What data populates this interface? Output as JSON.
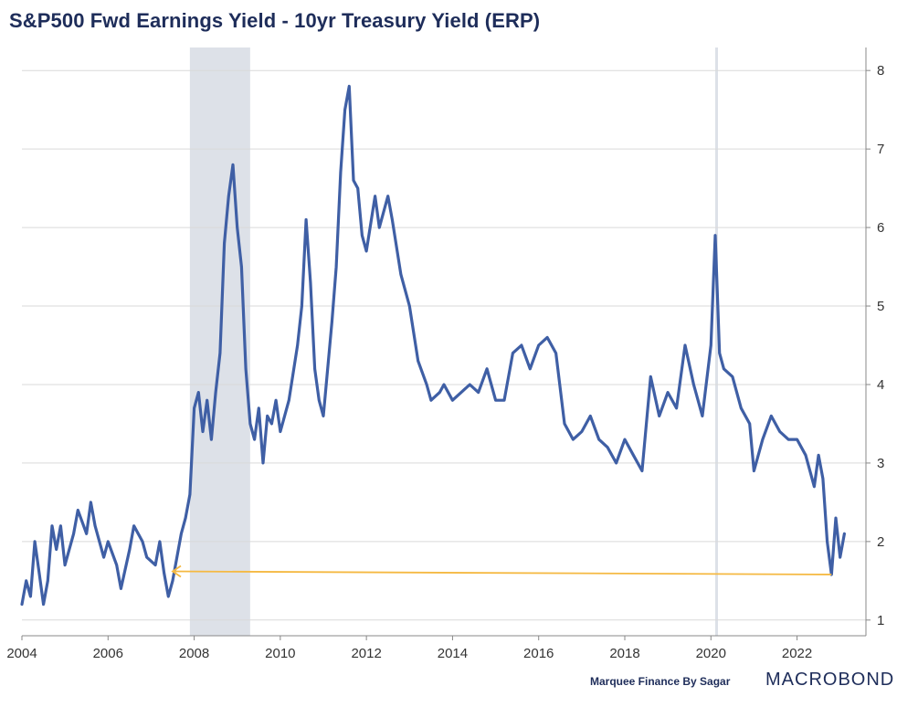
{
  "chart_data": {
    "type": "line",
    "title": "S&P500 Fwd Earnings Yield - 10yr Treasury Yield (ERP)",
    "xlabel": "",
    "ylabel": "",
    "xlim": [
      2004.0,
      2023.6
    ],
    "ylim": [
      0.8,
      8.2
    ],
    "y_axis_side": "right",
    "grid": true,
    "x_ticks": [
      2004,
      2006,
      2008,
      2010,
      2012,
      2014,
      2016,
      2018,
      2020,
      2022
    ],
    "y_ticks": [
      1,
      2,
      3,
      4,
      5,
      6,
      7,
      8
    ],
    "shaded_periods": [
      {
        "name": "recession-2008",
        "start": 2007.9,
        "end": 2009.3
      },
      {
        "name": "recession-2020",
        "start": 2020.1,
        "end": 2020.15
      }
    ],
    "annotation_arrow": {
      "from": [
        2022.8,
        1.58
      ],
      "to": [
        2007.5,
        1.62
      ],
      "color": "#f5b942"
    },
    "series": [
      {
        "name": "ERP",
        "color": "#3f5fa5",
        "x": [
          2004.0,
          2004.1,
          2004.2,
          2004.3,
          2004.4,
          2004.5,
          2004.6,
          2004.7,
          2004.8,
          2004.9,
          2005.0,
          2005.2,
          2005.3,
          2005.5,
          2005.6,
          2005.7,
          2005.9,
          2006.0,
          2006.2,
          2006.3,
          2006.5,
          2006.6,
          2006.8,
          2006.9,
          2007.1,
          2007.2,
          2007.3,
          2007.4,
          2007.5,
          2007.6,
          2007.7,
          2007.8,
          2007.9,
          2008.0,
          2008.1,
          2008.2,
          2008.3,
          2008.4,
          2008.5,
          2008.6,
          2008.7,
          2008.8,
          2008.9,
          2009.0,
          2009.1,
          2009.2,
          2009.3,
          2009.4,
          2009.5,
          2009.6,
          2009.7,
          2009.8,
          2009.9,
          2010.0,
          2010.2,
          2010.4,
          2010.5,
          2010.6,
          2010.7,
          2010.8,
          2010.9,
          2011.0,
          2011.2,
          2011.3,
          2011.4,
          2011.5,
          2011.6,
          2011.7,
          2011.8,
          2011.9,
          2012.0,
          2012.2,
          2012.3,
          2012.5,
          2012.6,
          2012.8,
          2013.0,
          2013.2,
          2013.4,
          2013.5,
          2013.7,
          2013.8,
          2014.0,
          2014.2,
          2014.4,
          2014.6,
          2014.8,
          2015.0,
          2015.2,
          2015.4,
          2015.6,
          2015.8,
          2016.0,
          2016.2,
          2016.4,
          2016.6,
          2016.8,
          2017.0,
          2017.2,
          2017.4,
          2017.6,
          2017.8,
          2018.0,
          2018.2,
          2018.4,
          2018.6,
          2018.8,
          2019.0,
          2019.2,
          2019.4,
          2019.6,
          2019.8,
          2020.0,
          2020.1,
          2020.2,
          2020.3,
          2020.5,
          2020.7,
          2020.9,
          2021.0,
          2021.2,
          2021.4,
          2021.6,
          2021.8,
          2022.0,
          2022.2,
          2022.4,
          2022.5,
          2022.6,
          2022.7,
          2022.8,
          2022.9,
          2023.0,
          2023.1
        ],
        "values": [
          1.2,
          1.5,
          1.3,
          2.0,
          1.6,
          1.2,
          1.5,
          2.2,
          1.9,
          2.2,
          1.7,
          2.1,
          2.4,
          2.1,
          2.5,
          2.2,
          1.8,
          2.0,
          1.7,
          1.4,
          1.9,
          2.2,
          2.0,
          1.8,
          1.7,
          2.0,
          1.6,
          1.3,
          1.5,
          1.8,
          2.1,
          2.3,
          2.6,
          3.7,
          3.9,
          3.4,
          3.8,
          3.3,
          3.9,
          4.4,
          5.8,
          6.4,
          6.8,
          6.0,
          5.5,
          4.2,
          3.5,
          3.3,
          3.7,
          3.0,
          3.6,
          3.5,
          3.8,
          3.4,
          3.8,
          4.5,
          5.0,
          6.1,
          5.3,
          4.2,
          3.8,
          3.6,
          4.8,
          5.5,
          6.7,
          7.5,
          7.8,
          6.6,
          6.5,
          5.9,
          5.7,
          6.4,
          6.0,
          6.4,
          6.1,
          5.4,
          5.0,
          4.3,
          4.0,
          3.8,
          3.9,
          4.0,
          3.8,
          3.9,
          4.0,
          3.9,
          4.2,
          3.8,
          3.8,
          4.4,
          4.5,
          4.2,
          4.5,
          4.6,
          4.4,
          3.5,
          3.3,
          3.4,
          3.6,
          3.3,
          3.2,
          3.0,
          3.3,
          3.1,
          2.9,
          4.1,
          3.6,
          3.9,
          3.7,
          4.5,
          4.0,
          3.6,
          4.5,
          5.9,
          4.4,
          4.2,
          4.1,
          3.7,
          3.5,
          2.9,
          3.3,
          3.6,
          3.4,
          3.3,
          3.3,
          3.1,
          2.7,
          3.1,
          2.8,
          2.0,
          1.58,
          2.3,
          1.8,
          2.1
        ]
      }
    ]
  },
  "footer": {
    "credit": "Marquee Finance By Sagar",
    "brand": "MACROBOND"
  },
  "colors": {
    "title": "#1e2d5a",
    "line": "#3f5fa5",
    "shade": "#dde1e8",
    "arrow": "#f5b942",
    "grid": "#d9d9d9"
  }
}
